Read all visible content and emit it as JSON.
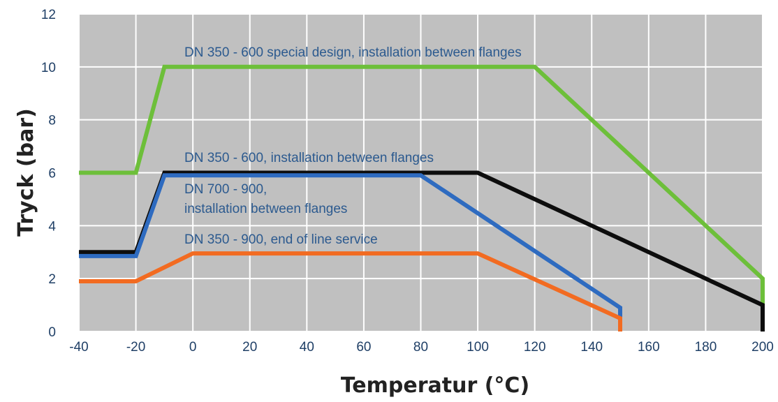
{
  "chart_data": {
    "type": "line",
    "title": "",
    "xlabel": "Temperatur (°C)",
    "ylabel": "Tryck (bar)",
    "xlim": [
      -40,
      200
    ],
    "ylim": [
      0,
      12
    ],
    "x_ticks": [
      "-40",
      "-20",
      "0",
      "20",
      "40",
      "60",
      "80",
      "100",
      "120",
      "140",
      "160",
      "180",
      "200"
    ],
    "y_ticks": [
      "0",
      "2",
      "4",
      "6",
      "8",
      "10",
      "12"
    ],
    "grid": true,
    "plot_background": "#c0c0c0",
    "series": [
      {
        "name": "DN 350 - 600 special design, installation between flanges",
        "color": "#6dbf3a",
        "points": [
          [
            -40,
            6
          ],
          [
            -20,
            6
          ],
          [
            -10,
            10
          ],
          [
            120,
            10
          ],
          [
            200,
            2
          ],
          [
            200,
            0
          ]
        ]
      },
      {
        "name": "DN 350 - 600, installation between flanges",
        "color": "#0d0d0d",
        "points": [
          [
            -40,
            3
          ],
          [
            -20,
            3
          ],
          [
            -10,
            6
          ],
          [
            100,
            6
          ],
          [
            200,
            1
          ],
          [
            200,
            0
          ]
        ]
      },
      {
        "name": "DN 700 - 900, installation between flanges",
        "name_lines": [
          "DN 700 - 900,",
          "installation between flanges"
        ],
        "color": "#2e6bc0",
        "points": [
          [
            -40,
            2.85
          ],
          [
            -20,
            2.85
          ],
          [
            -10,
            5.9
          ],
          [
            80,
            5.9
          ],
          [
            150,
            0.9
          ],
          [
            150,
            0
          ]
        ]
      },
      {
        "name": "DN 350 - 900, end of line service",
        "color": "#f26b21",
        "points": [
          [
            -40,
            1.9
          ],
          [
            -20,
            1.9
          ],
          [
            0,
            2.95
          ],
          [
            100,
            2.95
          ],
          [
            150,
            0.5
          ],
          [
            150,
            0
          ]
        ]
      }
    ]
  }
}
